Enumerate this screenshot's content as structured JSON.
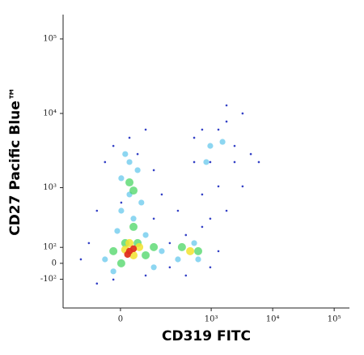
{
  "chart_data": {
    "type": "scatter",
    "x_label": "CD319 FITC",
    "y_label": "CD27 Pacific Blue™",
    "xscale": "biexponential",
    "yscale": "biexponential",
    "xlim": [
      -283,
      177000
    ],
    "ylim": [
      -363,
      212000
    ],
    "xticks": [
      0,
      {
        "value": 1000,
        "label": "10³"
      },
      {
        "value": 10000,
        "label": "10⁴"
      },
      {
        "value": 100000,
        "label": "10⁵"
      }
    ],
    "yticks": [
      {
        "value": -100,
        "label": "-10²"
      },
      0,
      {
        "value": 100,
        "label": "10²"
      },
      {
        "value": 1000,
        "label": "10³"
      },
      {
        "value": 10000,
        "label": "10⁴"
      },
      {
        "value": 100000,
        "label": "10⁵"
      }
    ],
    "series": [
      {
        "color": "#1e2cc0",
        "x": [
          -41,
          -18,
          46,
          107,
          150,
          -67,
          -99,
          -140,
          -67,
          -18,
          73,
          207,
          385,
          712,
          965,
          1310,
          712,
          965,
          1310,
          1775,
          2400,
          3240,
          1775,
          712,
          527,
          284,
          2400,
          4410,
          3240,
          5950,
          73,
          23,
          2,
          107,
          207,
          385,
          965,
          1310,
          1775,
          527
        ],
        "y": [
          2223,
          3666,
          2847,
          1728,
          807,
          476,
          130,
          24,
          -130,
          -102,
          -75,
          -24,
          193,
          269,
          -24,
          75,
          807,
          2223,
          6065,
          7781,
          3666,
          10000,
          12831,
          6065,
          2223,
          476,
          2223,
          2847,
          1043,
          2223,
          6065,
          4719,
          622,
          363,
          130,
          -75,
          363,
          1043,
          476,
          4719
        ]
      },
      {
        "color": "#2fb4e6",
        "x": [
          2,
          23,
          46,
          23,
          2,
          58,
          34,
          -8,
          73,
          150,
          284,
          527,
          613,
          -41,
          -18,
          107,
          965,
          831,
          1528,
          12
        ],
        "y": [
          1344,
          2223,
          1728,
          807,
          476,
          622,
          363,
          229,
          193,
          75,
          24,
          130,
          24,
          24,
          -49,
          -24,
          3666,
          2223,
          4154,
          2847
        ]
      },
      {
        "color": "#3fd35a",
        "x": [
          12,
          46,
          34,
          -18,
          73,
          107,
          331,
          613,
          2,
          34,
          23
        ],
        "y": [
          130,
          130,
          269,
          75,
          49,
          102,
          102,
          75,
          0,
          914,
          1180
        ]
      },
      {
        "color": "#f2e22e",
        "x": [
          12,
          34,
          51,
          23,
          453
        ],
        "y": [
          85,
          49,
          102,
          130,
          75
        ]
      },
      {
        "color": "#e0301e",
        "x": [
          23,
          34,
          18
        ],
        "y": [
          75,
          91,
          54
        ]
      }
    ]
  }
}
